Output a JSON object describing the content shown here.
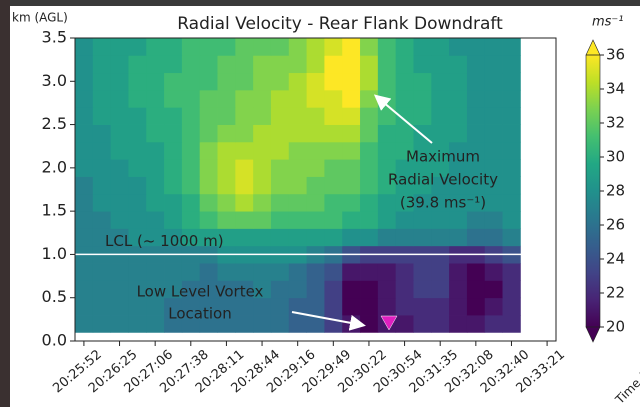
{
  "chart_data": {
    "type": "heatmap",
    "title": "Radial Velocity - Rear Flank Downdraft",
    "y_label": "km (AGL)",
    "x_label": "Time (UTC)",
    "colorbar_label": "ms⁻¹",
    "colormap": "viridis",
    "categories": [
      "20:25:52",
      null,
      "20:26:25",
      null,
      "20:27:06",
      null,
      "20:27:38",
      null,
      "20:28:11",
      null,
      "20:28:44",
      null,
      "20:29:16",
      null,
      "20:29:49",
      null,
      "20:30:22",
      null,
      "20:30:54",
      null,
      "20:31:35",
      null,
      "20:32:08",
      null,
      "20:32:40",
      null,
      "20:33:21"
    ],
    "y": [
      0.2,
      0.4,
      0.6,
      0.8,
      1.0,
      1.2,
      1.4,
      1.6,
      1.8,
      2.0,
      2.2,
      2.4,
      2.6,
      2.8,
      3.0,
      3.2,
      3.4
    ],
    "ylim": [
      0,
      3.5
    ],
    "yticks": [
      {
        "value": 0,
        "label": "0.0"
      },
      0.5,
      {
        "value": 1,
        "label": "1.0"
      },
      1.5,
      {
        "value": 2,
        "label": "2.0"
      },
      2.5,
      {
        "value": 3,
        "label": "3.0"
      },
      3.5
    ],
    "clim": [
      20,
      36
    ],
    "cticks": [
      20,
      22,
      24,
      26,
      28,
      30,
      32,
      34,
      36
    ],
    "z": [
      [
        27,
        27,
        27,
        27,
        27,
        26,
        26,
        26,
        26,
        26,
        26,
        26,
        25,
        25,
        23,
        21,
        20,
        21,
        21,
        22,
        22,
        21,
        21,
        22,
        22
      ],
      [
        27,
        27,
        27,
        27,
        27,
        26,
        26,
        26,
        26,
        26,
        26,
        26,
        25,
        25,
        23,
        20,
        20,
        21,
        22,
        22,
        22,
        21,
        20,
        21,
        22
      ],
      [
        27,
        27,
        27,
        27,
        27,
        27,
        26,
        26,
        26,
        26,
        27,
        26,
        26,
        25,
        23,
        20,
        20,
        21,
        22,
        23,
        23,
        21,
        20,
        20,
        22
      ],
      [
        27,
        27,
        27,
        27,
        27,
        27,
        27,
        26,
        27,
        27,
        27,
        27,
        26,
        25,
        24,
        21,
        21,
        21,
        22,
        23,
        23,
        21,
        20,
        21,
        22
      ],
      [
        27,
        27,
        27,
        27,
        27,
        27,
        27,
        27,
        28,
        28,
        28,
        28,
        28,
        27,
        26,
        24,
        23,
        23,
        23,
        23,
        23,
        22,
        22,
        23,
        24
      ],
      [
        27,
        27,
        27,
        28,
        28,
        28,
        29,
        29,
        29,
        29,
        29,
        29,
        29,
        29,
        29,
        28,
        28,
        27,
        27,
        27,
        27,
        27,
        26,
        26,
        27
      ],
      [
        27,
        27,
        28,
        28,
        28,
        29,
        30,
        31,
        32,
        32,
        32,
        31,
        31,
        31,
        31,
        30,
        30,
        29,
        28,
        28,
        28,
        28,
        27,
        27,
        28
      ],
      [
        27,
        28,
        28,
        28,
        29,
        29,
        30,
        32,
        33,
        34,
        33,
        32,
        32,
        32,
        31,
        31,
        30,
        29,
        29,
        28,
        28,
        28,
        28,
        28,
        28
      ],
      [
        27,
        28,
        28,
        28,
        29,
        30,
        31,
        33,
        34,
        35,
        34,
        33,
        33,
        32,
        32,
        32,
        31,
        30,
        29,
        29,
        28,
        28,
        28,
        28,
        28
      ],
      [
        28,
        28,
        28,
        29,
        29,
        30,
        31,
        33,
        34,
        35,
        34,
        33,
        33,
        33,
        32,
        32,
        31,
        30,
        29,
        29,
        29,
        28,
        28,
        28,
        28
      ],
      [
        28,
        28,
        29,
        29,
        29,
        30,
        31,
        33,
        34,
        34,
        34,
        34,
        33,
        33,
        33,
        33,
        31,
        30,
        30,
        29,
        29,
        28,
        28,
        28,
        28
      ],
      [
        28,
        28,
        29,
        29,
        30,
        30,
        31,
        32,
        33,
        33,
        34,
        34,
        34,
        34,
        34,
        34,
        32,
        30,
        30,
        29,
        29,
        29,
        28,
        28,
        28
      ],
      [
        28,
        29,
        29,
        29,
        30,
        30,
        31,
        32,
        32,
        33,
        33,
        34,
        34,
        34,
        35,
        35,
        32,
        31,
        30,
        30,
        29,
        29,
        28,
        28,
        28
      ],
      [
        28,
        29,
        29,
        30,
        30,
        31,
        31,
        32,
        32,
        33,
        33,
        34,
        34,
        35,
        35,
        36,
        33,
        31,
        30,
        30,
        29,
        29,
        28,
        28,
        28
      ],
      [
        28,
        29,
        29,
        30,
        30,
        31,
        31,
        31,
        32,
        32,
        33,
        33,
        34,
        35,
        36,
        38,
        34,
        31,
        30,
        30,
        29,
        29,
        28,
        28,
        28
      ],
      [
        28,
        29,
        29,
        30,
        30,
        30,
        31,
        31,
        32,
        32,
        33,
        33,
        33,
        34,
        36,
        39.8,
        34,
        31,
        30,
        29,
        29,
        29,
        28,
        28,
        28
      ],
      [
        28,
        29,
        29,
        29,
        30,
        30,
        31,
        31,
        31,
        32,
        32,
        32,
        33,
        34,
        35,
        37,
        33,
        31,
        30,
        29,
        29,
        28,
        28,
        28,
        28
      ]
    ],
    "annotations": [
      {
        "lines": [
          "LCL (~ 1000 m)"
        ]
      },
      {
        "lines": [
          "Maximum",
          "Radial Velocity",
          "(39.8 ms⁻¹)"
        ]
      },
      {
        "lines": [
          "Low Level Vortex",
          "Location"
        ]
      }
    ]
  }
}
